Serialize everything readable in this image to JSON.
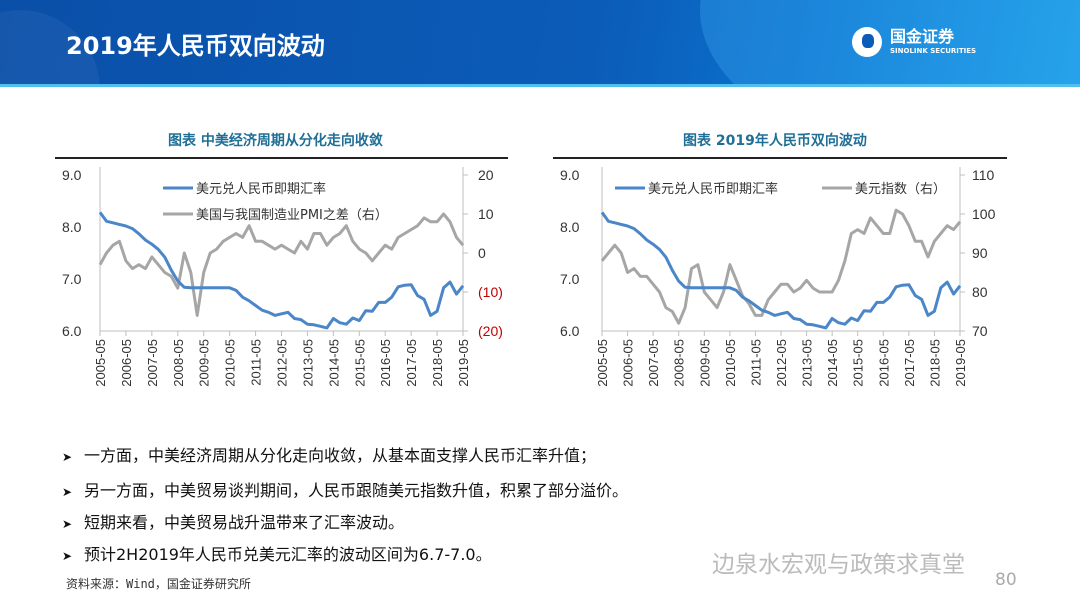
{
  "header": {
    "title": "2019年人民币双向波动",
    "logo_cn": "国金证券",
    "logo_en": "SINOLINK SECURITIES"
  },
  "colors": {
    "header_blue": "#0b5cb8",
    "usdcny": "#4a86c8",
    "secondary": "#a6a6a6",
    "title_teal": "#1f6f97",
    "negative_tick": "#c00000"
  },
  "chart_data": [
    {
      "type": "line",
      "title": "图表 中美经济周期从分化走向收敛",
      "x_ticks": [
        "2005-05",
        "2006-05",
        "2007-05",
        "2008-05",
        "2009-05",
        "2010-05",
        "2011-05",
        "2012-05",
        "2013-05",
        "2014-05",
        "2015-05",
        "2016-05",
        "2017-05",
        "2018-05",
        "2019-05"
      ],
      "y_left": {
        "range": [
          6.0,
          9.0
        ],
        "ticks": [
          "6.0",
          "7.0",
          "8.0",
          "9.0"
        ]
      },
      "y_right": {
        "range": [
          -20,
          20
        ],
        "ticks": [
          "(20)",
          "(10)",
          "0",
          "10",
          "20"
        ]
      },
      "legend_placement": "top",
      "series": [
        {
          "name": "美元兑人民币即期汇率",
          "axis": "left",
          "color": "#4a86c8",
          "values": [
            8.28,
            8.11,
            8.08,
            8.05,
            8.02,
            7.97,
            7.87,
            7.75,
            7.67,
            7.57,
            7.42,
            7.17,
            6.96,
            6.84,
            6.83,
            6.83,
            6.83,
            6.83,
            6.83,
            6.83,
            6.83,
            6.78,
            6.65,
            6.58,
            6.49,
            6.4,
            6.36,
            6.3,
            6.33,
            6.36,
            6.24,
            6.22,
            6.13,
            6.12,
            6.09,
            6.06,
            6.24,
            6.16,
            6.13,
            6.25,
            6.2,
            6.39,
            6.38,
            6.55,
            6.55,
            6.65,
            6.85,
            6.88,
            6.89,
            6.68,
            6.61,
            6.3,
            6.38,
            6.83,
            6.94,
            6.71,
            6.87
          ]
        },
        {
          "name": "美国与我国制造业PMI之差（右）",
          "axis": "right",
          "color": "#a6a6a6",
          "values": [
            -3,
            0,
            2,
            3,
            -2,
            -4,
            -3,
            -4,
            -1,
            -3,
            -5,
            -6,
            -9,
            0,
            -5,
            -16,
            -5,
            0,
            1,
            3,
            4,
            5,
            4,
            7,
            3,
            3,
            2,
            1,
            2,
            1,
            0,
            3,
            1,
            5,
            5,
            2,
            4,
            5,
            7,
            3,
            1,
            0,
            -2,
            0,
            2,
            1,
            4,
            5,
            6,
            7,
            9,
            8,
            8,
            10,
            8,
            4,
            2
          ]
        }
      ]
    },
    {
      "type": "line",
      "title": "图表  2019年人民币双向波动",
      "x_ticks": [
        "2005-05",
        "2006-05",
        "2007-05",
        "2008-05",
        "2009-05",
        "2010-05",
        "2011-05",
        "2012-05",
        "2013-05",
        "2014-05",
        "2015-05",
        "2016-05",
        "2017-05",
        "2018-05",
        "2019-05"
      ],
      "y_left": {
        "range": [
          6.0,
          9.0
        ],
        "ticks": [
          "6.0",
          "7.0",
          "8.0",
          "9.0"
        ]
      },
      "y_right": {
        "range": [
          70,
          110
        ],
        "ticks": [
          "70",
          "80",
          "90",
          "100",
          "110"
        ]
      },
      "legend_placement": "top",
      "series": [
        {
          "name": "美元兑人民币即期汇率",
          "axis": "left",
          "color": "#4a86c8",
          "values": [
            8.28,
            8.11,
            8.08,
            8.05,
            8.02,
            7.97,
            7.87,
            7.75,
            7.67,
            7.57,
            7.42,
            7.17,
            6.96,
            6.84,
            6.83,
            6.83,
            6.83,
            6.83,
            6.83,
            6.83,
            6.83,
            6.78,
            6.65,
            6.58,
            6.49,
            6.4,
            6.36,
            6.3,
            6.33,
            6.36,
            6.24,
            6.22,
            6.13,
            6.12,
            6.09,
            6.06,
            6.24,
            6.16,
            6.13,
            6.25,
            6.2,
            6.39,
            6.38,
            6.55,
            6.55,
            6.65,
            6.85,
            6.88,
            6.89,
            6.68,
            6.61,
            6.3,
            6.38,
            6.83,
            6.94,
            6.71,
            6.87
          ]
        },
        {
          "name": "美元指数（右）",
          "axis": "right",
          "color": "#a6a6a6",
          "values": [
            88,
            90,
            92,
            90,
            85,
            86,
            84,
            84,
            82,
            80,
            76,
            75,
            72,
            76,
            86,
            87,
            80,
            78,
            76,
            80,
            87,
            83,
            79,
            77,
            74,
            74,
            78,
            80,
            82,
            82,
            80,
            81,
            83,
            81,
            80,
            80,
            80,
            83,
            88,
            95,
            96,
            95,
            99,
            97,
            95,
            95,
            101,
            100,
            97,
            93,
            93,
            89,
            93,
            95,
            97,
            96,
            98
          ]
        }
      ]
    }
  ],
  "bullets": [
    "一方面，中美经济周期从分化走向收敛，从基本面支撑人民币汇率升值；",
    "另一方面，中美贸易谈判期间，人民币跟随美元指数升值，积累了部分溢价。",
    "短期来看，中美贸易战升温带来了汇率波动。",
    "预计2H2019年人民币兑美元汇率的波动区间为6.7-7.0。"
  ],
  "bullet_icon": "arrow-right-icon",
  "source": "资料来源：Wind，国金证券研究所",
  "watermark": "边泉水宏观与政策求真堂",
  "page_number": "80"
}
